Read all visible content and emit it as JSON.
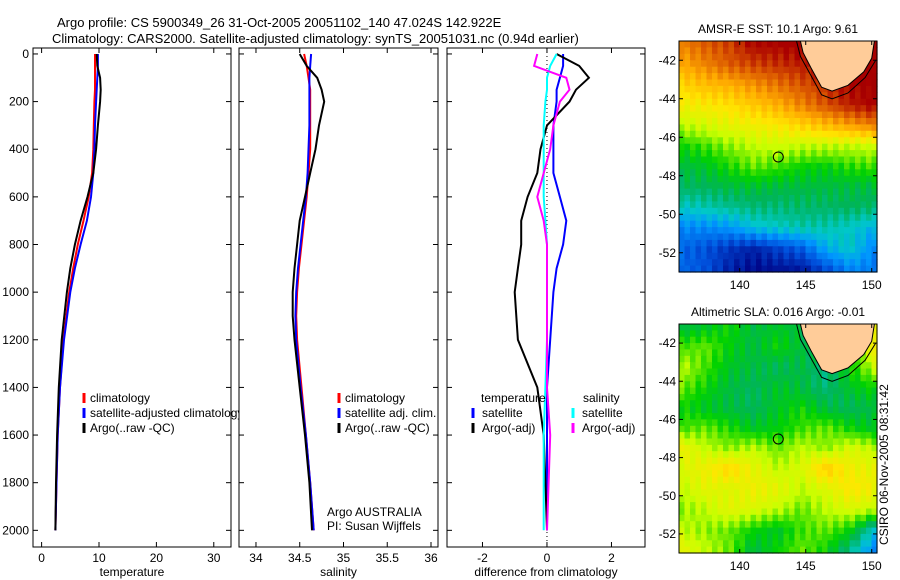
{
  "title": {
    "line1": "Argo profile: CS 5900349_26 31-Oct-2005 20051102_140 47.024S 142.922E",
    "line2": "Climatology: CARS2000. Satellite-adjusted climatology: synTS_20051031.nc (0.94d earlier)"
  },
  "side_label": "CSIRO 06-Nov-2005 08:31:42",
  "chart_data": [
    {
      "type": "line",
      "id": "temperature",
      "xlabel": "temperature",
      "ylabel": "",
      "xlim": [
        -1.5,
        33
      ],
      "ylim": [
        2070,
        -25
      ],
      "xticks": [
        0,
        10,
        20,
        30
      ],
      "yticks": [
        0,
        200,
        400,
        600,
        800,
        1000,
        1200,
        1400,
        1600,
        1800,
        2000
      ],
      "show_yticklabels": true,
      "depth": [
        0,
        50,
        100,
        150,
        200,
        300,
        400,
        500,
        600,
        700,
        800,
        900,
        1000,
        1200,
        1400,
        1600,
        1800,
        2000
      ],
      "series": [
        {
          "name": "climatology",
          "color": "#ff0000",
          "values": [
            9.3,
            9.3,
            9.3,
            9.3,
            9.2,
            9.1,
            9.0,
            8.8,
            8.2,
            7.3,
            6.3,
            5.5,
            4.8,
            3.8,
            3.2,
            2.8,
            2.6,
            2.4
          ]
        },
        {
          "name": "satellite-adjusted climatology",
          "color": "#0000ff",
          "values": [
            9.8,
            9.8,
            9.7,
            9.6,
            9.5,
            9.3,
            9.2,
            9.0,
            8.6,
            7.9,
            6.8,
            5.8,
            5.0,
            3.9,
            3.2,
            2.8,
            2.6,
            2.4
          ]
        },
        {
          "name": "Argo(..raw -QC)",
          "color": "#000000",
          "values": [
            9.6,
            9.7,
            10.2,
            10.3,
            10.2,
            9.8,
            9.5,
            9.0,
            8.0,
            6.8,
            5.8,
            5.0,
            4.4,
            3.5,
            3.0,
            2.7,
            2.5,
            2.4
          ]
        }
      ],
      "legend": [
        "climatology",
        "satellite-adjusted climatology",
        "Argo(..raw -QC)"
      ]
    },
    {
      "type": "line",
      "id": "salinity",
      "xlabel": "salinity",
      "xlim": [
        33.806,
        36.08
      ],
      "ylim": [
        2070,
        -25
      ],
      "xticks": [
        34,
        34.5,
        35,
        35.5,
        36
      ],
      "yticks": [
        0,
        200,
        400,
        600,
        800,
        1000,
        1200,
        1400,
        1600,
        1800,
        2000
      ],
      "show_yticklabels": false,
      "depth": [
        0,
        50,
        100,
        150,
        200,
        300,
        400,
        500,
        600,
        700,
        800,
        900,
        1000,
        1100,
        1200,
        1400,
        1600,
        1800,
        2000
      ],
      "series": [
        {
          "name": "climatology",
          "color": "#ff0000",
          "values": [
            34.55,
            34.58,
            34.6,
            34.62,
            34.62,
            34.62,
            34.62,
            34.6,
            34.58,
            34.55,
            34.52,
            34.49,
            34.47,
            34.46,
            34.47,
            34.52,
            34.57,
            34.62,
            34.66
          ]
        },
        {
          "name": "satellite adj. clim.",
          "color": "#0000ff",
          "values": [
            34.63,
            34.62,
            34.61,
            34.61,
            34.61,
            34.61,
            34.6,
            34.59,
            34.57,
            34.54,
            34.51,
            34.48,
            34.46,
            34.45,
            34.46,
            34.51,
            34.57,
            34.62,
            34.66
          ]
        },
        {
          "name": "Argo(..raw -QC)",
          "color": "#000000",
          "values": [
            34.5,
            34.58,
            34.7,
            34.75,
            34.78,
            34.72,
            34.68,
            34.62,
            34.56,
            34.5,
            34.47,
            34.44,
            34.42,
            34.42,
            34.44,
            34.5,
            34.56,
            34.61,
            34.64
          ]
        }
      ],
      "legend": [
        "climatology",
        "satellite adj. clim.",
        "Argo(..raw -QC)"
      ],
      "annotation": [
        "Argo AUSTRALIA",
        "PI: Susan Wijffels"
      ]
    },
    {
      "type": "line",
      "id": "difference",
      "xlabel": "difference from climatology",
      "xlim": [
        -3.1,
        3.04
      ],
      "ylim": [
        2070,
        -25
      ],
      "xticks": [
        -2,
        0,
        2
      ],
      "yticks": [
        0,
        200,
        400,
        600,
        800,
        1000,
        1200,
        1400,
        1600,
        1800,
        2000
      ],
      "show_yticklabels": false,
      "depth": [
        0,
        50,
        100,
        150,
        200,
        300,
        400,
        500,
        600,
        700,
        800,
        900,
        1000,
        1200,
        1400,
        1600,
        1800,
        2000
      ],
      "series": [
        {
          "name": "temperature satellite",
          "color": "#0000ff",
          "values": [
            0.5,
            0.5,
            0.4,
            0.3,
            0.3,
            0.2,
            0.2,
            0.2,
            0.4,
            0.6,
            0.5,
            0.3,
            0.2,
            0.1,
            0.0,
            0.0,
            0.0,
            0.0
          ]
        },
        {
          "name": "temperature Argo(-adj)",
          "color": "#000000",
          "values": [
            0.3,
            1.0,
            1.3,
            0.9,
            0.7,
            0.0,
            -0.2,
            -0.3,
            -0.6,
            -0.8,
            -0.8,
            -0.9,
            -1.0,
            -0.9,
            -0.3,
            -0.1,
            -0.05,
            0.0
          ]
        },
        {
          "name": "salinity satellite",
          "color": "#00ffff",
          "values": [
            0.3,
            0.1,
            0.0,
            0.0,
            -0.05,
            -0.1,
            -0.1,
            -0.1,
            -0.1,
            -0.05,
            0.0,
            0.0,
            0.0,
            0.0,
            -0.05,
            -0.1,
            -0.1,
            -0.1
          ]
        },
        {
          "name": "salinity Argo(-adj)",
          "color": "#ff00ff",
          "values": [
            -0.3,
            -0.4,
            0.6,
            0.7,
            0.4,
            0.2,
            0.1,
            -0.1,
            -0.3,
            -0.1,
            0.0,
            0.0,
            0.0,
            0.0,
            0.0,
            0.1,
            0.05,
            0.0
          ]
        }
      ],
      "legend_headers": [
        "temperature",
        "salinity"
      ],
      "legend": [
        [
          "satellite",
          "Argo(-adj)"
        ],
        [
          "satellite",
          "Argo(-adj)"
        ]
      ]
    },
    {
      "type": "heatmap",
      "id": "sst-map",
      "title": "AMSR-E SST: 10.1 Argo: 9.61",
      "xlim": [
        135.4,
        150.4
      ],
      "ylim": [
        -53.0,
        -41.0
      ],
      "xticks": [
        140,
        145,
        150
      ],
      "yticks": [
        -42,
        -44,
        -46,
        -48,
        -50,
        -52
      ],
      "float_position": [
        142.922,
        -47.024
      ],
      "grid": [
        [
          0.8,
          0.85,
          0.88,
          0.95,
          0.95,
          0.97,
          0.97,
          0.97,
          0.97
        ],
        [
          0.75,
          0.8,
          0.85,
          0.88,
          0.9,
          0.92,
          0.95,
          0.97,
          0.97
        ],
        [
          0.68,
          0.72,
          0.74,
          0.78,
          0.82,
          0.86,
          0.9,
          0.95,
          0.97
        ],
        [
          0.62,
          0.64,
          0.66,
          0.7,
          0.74,
          0.8,
          0.86,
          0.92,
          0.95
        ],
        [
          0.55,
          0.57,
          0.6,
          0.62,
          0.64,
          0.68,
          0.72,
          0.76,
          0.8
        ],
        [
          0.45,
          0.48,
          0.52,
          0.55,
          0.56,
          0.55,
          0.55,
          0.55,
          0.56
        ],
        [
          0.4,
          0.42,
          0.46,
          0.5,
          0.48,
          0.45,
          0.44,
          0.47,
          0.48
        ],
        [
          0.38,
          0.38,
          0.4,
          0.41,
          0.4,
          0.4,
          0.4,
          0.4,
          0.4
        ],
        [
          0.3,
          0.32,
          0.34,
          0.36,
          0.36,
          0.37,
          0.37,
          0.38,
          0.37
        ],
        [
          0.2,
          0.2,
          0.22,
          0.28,
          0.3,
          0.32,
          0.32,
          0.3,
          0.26
        ],
        [
          0.15,
          0.12,
          0.08,
          0.05,
          0.1,
          0.14,
          0.25,
          0.3,
          0.2
        ],
        [
          0.15,
          0.12,
          0.05,
          0.02,
          0.03,
          0.04,
          0.12,
          0.2,
          0.18
        ]
      ]
    },
    {
      "type": "heatmap",
      "id": "sla-map",
      "title": "Altimetric SLA: 0.016 Argo: -0.01",
      "xlim": [
        135.4,
        150.4
      ],
      "ylim": [
        -53.0,
        -41.0
      ],
      "xticks": [
        140,
        145,
        150
      ],
      "yticks": [
        -42,
        -44,
        -46,
        -48,
        -50,
        -52
      ],
      "float_position": [
        142.922,
        -47.024
      ],
      "grid": [
        [
          0.4,
          0.42,
          0.45,
          0.4,
          0.42,
          0.4,
          0.4,
          0.42,
          0.6
        ],
        [
          0.48,
          0.5,
          0.44,
          0.4,
          0.45,
          0.4,
          0.38,
          0.4,
          0.65
        ],
        [
          0.55,
          0.48,
          0.42,
          0.4,
          0.38,
          0.4,
          0.35,
          0.45,
          0.55
        ],
        [
          0.5,
          0.45,
          0.4,
          0.38,
          0.42,
          0.4,
          0.36,
          0.42,
          0.45
        ],
        [
          0.45,
          0.42,
          0.4,
          0.38,
          0.42,
          0.45,
          0.4,
          0.38,
          0.4
        ],
        [
          0.48,
          0.5,
          0.46,
          0.42,
          0.44,
          0.48,
          0.5,
          0.45,
          0.42
        ],
        [
          0.62,
          0.55,
          0.52,
          0.55,
          0.5,
          0.55,
          0.52,
          0.58,
          0.55
        ],
        [
          0.58,
          0.62,
          0.68,
          0.6,
          0.55,
          0.58,
          0.7,
          0.62,
          0.6
        ],
        [
          0.55,
          0.6,
          0.58,
          0.62,
          0.6,
          0.55,
          0.58,
          0.65,
          0.62
        ],
        [
          0.52,
          0.55,
          0.6,
          0.58,
          0.55,
          0.5,
          0.55,
          0.58,
          0.55
        ],
        [
          0.55,
          0.52,
          0.5,
          0.45,
          0.42,
          0.48,
          0.5,
          0.45,
          0.3
        ],
        [
          0.6,
          0.55,
          0.5,
          0.4,
          0.45,
          0.5,
          0.45,
          0.35,
          0.2
        ]
      ]
    }
  ]
}
